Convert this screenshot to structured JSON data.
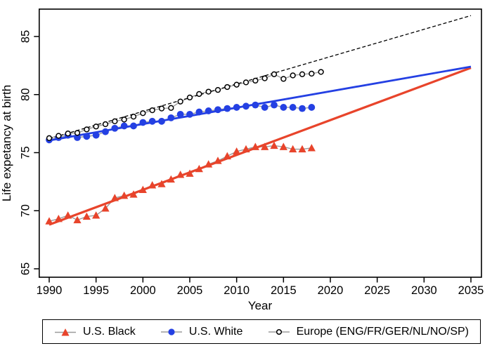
{
  "chart_data": {
    "type": "line",
    "title": "",
    "xlabel": "Year",
    "ylabel": "Life expetancy at birth",
    "xlim": [
      1988.9,
      2036.1
    ],
    "ylim": [
      64.3,
      87.3
    ],
    "x_ticks": [
      "1990",
      "1995",
      "2000",
      "2005",
      "2010",
      "2015",
      "2020",
      "2025",
      "2030",
      "2035"
    ],
    "x_tick_values": [
      1990,
      1995,
      2000,
      2005,
      2010,
      2015,
      2020,
      2025,
      2030,
      2035
    ],
    "y_ticks": [
      "65",
      "70",
      "75",
      "80",
      "85"
    ],
    "y_tick_values": [
      65,
      70,
      75,
      80,
      85
    ],
    "grid": false,
    "legend_position": "bottom",
    "connector_color": "#9b9b9b",
    "series": [
      {
        "name": "U.S. Black",
        "marker": "triangle",
        "color": "#E8442B",
        "x": [
          1990,
          1991,
          1992,
          1993,
          1994,
          1995,
          1996,
          1997,
          1998,
          1999,
          2000,
          2001,
          2002,
          2003,
          2004,
          2005,
          2006,
          2007,
          2008,
          2009,
          2010,
          2011,
          2012,
          2013,
          2014,
          2015,
          2016,
          2017,
          2018
        ],
        "values": [
          69.1,
          69.3,
          69.6,
          69.2,
          69.5,
          69.6,
          70.2,
          71.1,
          71.3,
          71.4,
          71.8,
          72.2,
          72.3,
          72.7,
          73.1,
          73.2,
          73.6,
          74.0,
          74.3,
          74.7,
          75.1,
          75.3,
          75.5,
          75.5,
          75.6,
          75.5,
          75.3,
          75.3,
          75.4
        ]
      },
      {
        "name": "U.S. White",
        "marker": "circle",
        "color": "#2440E3",
        "x": [
          1990,
          1991,
          1992,
          1993,
          1994,
          1995,
          1996,
          1997,
          1998,
          1999,
          2000,
          2001,
          2002,
          2003,
          2004,
          2005,
          2006,
          2007,
          2008,
          2009,
          2010,
          2011,
          2012,
          2013,
          2014,
          2015,
          2016,
          2017,
          2018
        ],
        "values": [
          76.1,
          76.3,
          76.5,
          76.3,
          76.4,
          76.5,
          76.8,
          77.1,
          77.3,
          77.3,
          77.6,
          77.7,
          77.7,
          78.0,
          78.3,
          78.3,
          78.5,
          78.6,
          78.7,
          78.8,
          78.9,
          79.0,
          79.1,
          78.9,
          79.1,
          78.9,
          78.9,
          78.8,
          78.9
        ]
      },
      {
        "name": "Europe (ENG/FR/GER/NL/NO/SP)",
        "marker": "open-circle",
        "color": "#000000",
        "x": [
          1990,
          1991,
          1992,
          1993,
          1994,
          1995,
          1996,
          1997,
          1998,
          1999,
          2000,
          2001,
          2002,
          2003,
          2004,
          2005,
          2006,
          2007,
          2008,
          2009,
          2010,
          2011,
          2012,
          2013,
          2014,
          2015,
          2016,
          2017,
          2018,
          2019
        ],
        "values": [
          76.25,
          76.45,
          76.65,
          76.7,
          77.0,
          77.25,
          77.45,
          77.7,
          77.85,
          78.1,
          78.4,
          78.65,
          78.8,
          78.85,
          79.4,
          79.75,
          80.05,
          80.25,
          80.4,
          80.65,
          80.85,
          81.05,
          81.2,
          81.4,
          81.75,
          81.35,
          81.65,
          81.75,
          81.8,
          81.95
        ]
      }
    ],
    "trend_lines": [
      {
        "series": "U.S. Black",
        "color": "#E8442B",
        "style": "solid",
        "width": 3.2,
        "x": [
          1990,
          2035
        ],
        "values": [
          68.8,
          82.3
        ]
      },
      {
        "series": "U.S. White",
        "color": "#2440E3",
        "style": "solid",
        "width": 2.8,
        "x": [
          1990,
          2035
        ],
        "values": [
          76.05,
          82.4
        ]
      },
      {
        "series": "Europe (ENG/FR/GER/NL/NO/SP)",
        "color": "#000000",
        "style": "dashed",
        "width": 1.3,
        "x": [
          1990,
          2035
        ],
        "values": [
          76.2,
          86.8
        ]
      }
    ]
  },
  "legend": {
    "items": [
      {
        "label": "U.S. Black",
        "marker": "triangle",
        "color": "#E8442B"
      },
      {
        "label": "U.S. White",
        "marker": "circle",
        "color": "#2440E3"
      },
      {
        "label": "Europe (ENG/FR/GER/NL/NO/SP)",
        "marker": "open-circle",
        "color": "#000000"
      }
    ]
  }
}
